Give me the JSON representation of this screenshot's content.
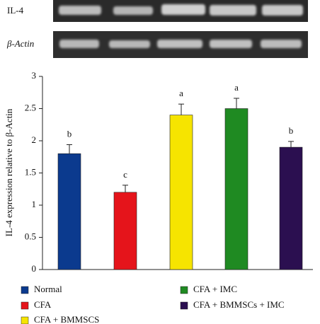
{
  "gel": {
    "labels": [
      "IL-4",
      "β-Actin"
    ]
  },
  "chart_data": {
    "type": "bar",
    "y_label": "IL-4 expression relative to β-Actin",
    "categories": [
      "Normal",
      "CFA",
      "CFA + BMMSCS",
      "CFA + IMC",
      "CFA + BMMSCs + IMC"
    ],
    "values": [
      1.8,
      1.2,
      2.4,
      2.5,
      1.9
    ],
    "errors": [
      0.14,
      0.11,
      0.17,
      0.16,
      0.09
    ],
    "annotations": [
      "b",
      "c",
      "a",
      "a",
      "b"
    ],
    "colors": [
      "#0b3a8e",
      "#e5141b",
      "#f6e400",
      "#1f8a22",
      "#2b0f50"
    ],
    "ylim": [
      0,
      3
    ],
    "yticks": [
      0,
      0.5,
      1,
      1.5,
      2,
      2.5,
      3
    ]
  }
}
